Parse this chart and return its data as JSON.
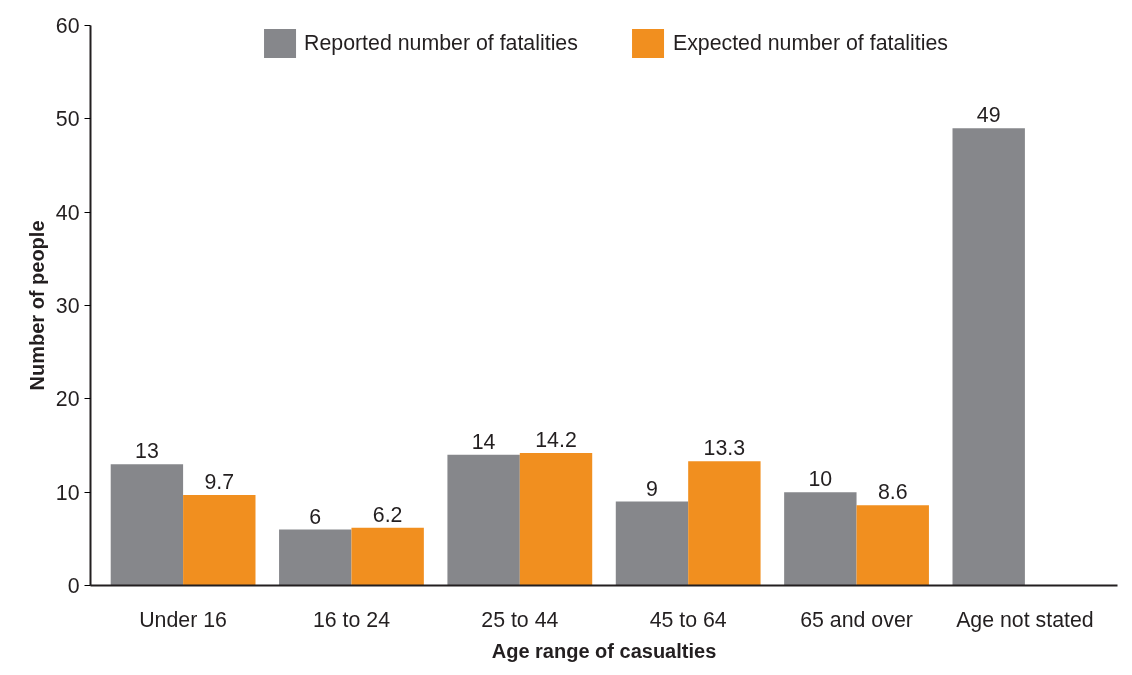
{
  "chart_data": {
    "type": "bar",
    "xlabel": "Age range of casualties",
    "ylabel": "Number of people",
    "categories": [
      "Under 16",
      "16 to 24",
      "25 to 44",
      "45 to 64",
      "65 and over",
      "Age not stated"
    ],
    "series": [
      {
        "name": "Reported number of fatalities",
        "color": "#86878b",
        "values": [
          13,
          6,
          14,
          9,
          10,
          49
        ]
      },
      {
        "name": "Expected number of fatalities",
        "color": "#f18f1f",
        "values": [
          9.7,
          6.2,
          14.2,
          13.3,
          8.6,
          null
        ]
      }
    ],
    "ylim": [
      0,
      60
    ],
    "yticks": [
      0,
      10,
      20,
      30,
      40,
      50,
      60
    ],
    "grid": false,
    "legend": "top",
    "data_labels": true
  }
}
